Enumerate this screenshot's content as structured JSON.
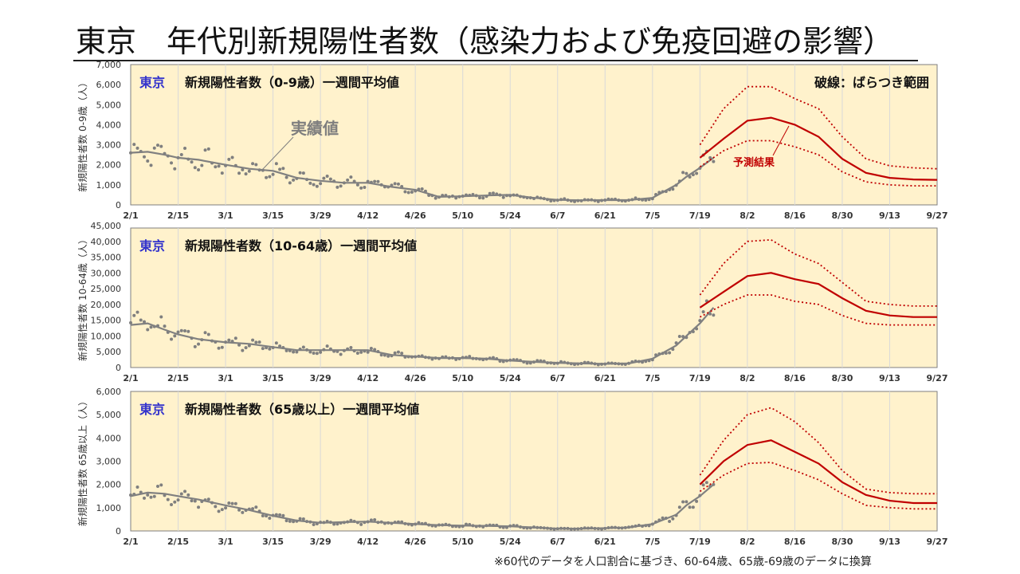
{
  "page": {
    "title": "東京　年代別新規陽性者数（感染力および免疫回避の影響）"
  },
  "footnote": "※60代のデータを人口割合に基づき、60-64歳、65歳-69歳のデータに換算",
  "colors": {
    "panel_bg": "#fff2cc",
    "actual": "#808080",
    "forecast": "#c00000",
    "tokyo_label": "#3333cc"
  },
  "chart_data": [
    {
      "type": "line",
      "region_label": "東京",
      "title": "新規陽性者数（0-9歳）一週間平均値",
      "legend_note": "破線：ばらつき範囲",
      "ylabel": "新規陽性者数 0-9歳（人）",
      "ylim": [
        0,
        7000
      ],
      "yticks": [
        0,
        1000,
        2000,
        3000,
        4000,
        5000,
        6000,
        7000
      ],
      "ytick_labels": [
        "0",
        "1,000",
        "2,000",
        "3,000",
        "4,000",
        "5,000",
        "6,000",
        "7,000"
      ],
      "x_tick_labels": [
        "2/1",
        "2/15",
        "3/1",
        "3/15",
        "3/29",
        "4/12",
        "4/26",
        "5/10",
        "5/24",
        "6/7",
        "6/21",
        "7/5",
        "7/19",
        "8/2",
        "8/16",
        "8/30",
        "9/13",
        "9/27"
      ],
      "x_range_days": [
        0,
        238
      ],
      "annotations": [
        {
          "text": "実績値"
        },
        {
          "text": "予測結果"
        }
      ],
      "series": [
        {
          "name": "実績値",
          "x": [
            0,
            5,
            10,
            14,
            20,
            28,
            35,
            42,
            49,
            56,
            63,
            70,
            77,
            84,
            91,
            98,
            105,
            112,
            119,
            126,
            133,
            140,
            147,
            154,
            161,
            164,
            168,
            172
          ],
          "values": [
            2600,
            2650,
            2500,
            2350,
            2250,
            2000,
            1800,
            1700,
            1350,
            1200,
            1100,
            1100,
            900,
            750,
            400,
            430,
            470,
            500,
            350,
            250,
            230,
            240,
            240,
            350,
            1000,
            1400,
            1850,
            2350
          ]
        },
        {
          "name": "予測結果",
          "x": [
            168,
            175,
            182,
            189,
            196,
            203,
            210,
            217,
            224,
            231,
            238
          ],
          "values": [
            2350,
            3300,
            4200,
            4350,
            4000,
            3400,
            2300,
            1600,
            1350,
            1270,
            1250
          ]
        },
        {
          "name": "上限",
          "x": [
            168,
            175,
            182,
            189,
            196,
            203,
            210,
            217,
            224,
            231,
            238
          ],
          "values": [
            3000,
            4800,
            5900,
            5900,
            5300,
            4800,
            3400,
            2300,
            1950,
            1850,
            1800
          ]
        },
        {
          "name": "下限",
          "x": [
            168,
            175,
            182,
            189,
            196,
            203,
            210,
            217,
            224,
            231,
            238
          ],
          "values": [
            1900,
            2700,
            3200,
            3200,
            2900,
            2500,
            1650,
            1150,
            1000,
            950,
            950
          ]
        }
      ]
    },
    {
      "type": "line",
      "region_label": "東京",
      "title": "新規陽性者数（10-64歳）一週間平均値",
      "ylabel": "新規陽性者数 10-64歳（人）",
      "ylim": [
        0,
        45000
      ],
      "yticks": [
        0,
        5000,
        10000,
        15000,
        20000,
        25000,
        30000,
        35000,
        40000,
        45000
      ],
      "ytick_labels": [
        "0",
        "5,000",
        "10,000",
        "15,000",
        "20,000",
        "25,000",
        "30,000",
        "35,000",
        "40,000",
        "45,000"
      ],
      "x_tick_labels": [
        "2/1",
        "2/15",
        "3/1",
        "3/15",
        "3/29",
        "4/12",
        "4/26",
        "5/10",
        "5/24",
        "6/7",
        "6/21",
        "7/5",
        "7/19",
        "8/2",
        "8/16",
        "8/30",
        "9/13",
        "9/27"
      ],
      "x_range_days": [
        0,
        238
      ],
      "series": [
        {
          "name": "実績値",
          "x": [
            0,
            5,
            10,
            14,
            20,
            28,
            35,
            42,
            49,
            56,
            63,
            70,
            77,
            84,
            91,
            98,
            105,
            112,
            119,
            126,
            133,
            140,
            147,
            154,
            161,
            164,
            168,
            172
          ],
          "values": [
            13500,
            14000,
            12000,
            10500,
            9000,
            8000,
            7500,
            6500,
            5500,
            5500,
            5500,
            5500,
            4000,
            3500,
            3000,
            3000,
            2800,
            2200,
            1800,
            1500,
            1300,
            1200,
            1300,
            2800,
            7000,
            10000,
            14000,
            19000
          ]
        },
        {
          "name": "予測結果",
          "x": [
            168,
            175,
            182,
            189,
            196,
            203,
            210,
            217,
            224,
            231,
            238
          ],
          "values": [
            19000,
            24000,
            29000,
            30000,
            28000,
            26500,
            22000,
            18000,
            16500,
            16000,
            16000
          ]
        },
        {
          "name": "上限",
          "x": [
            168,
            175,
            182,
            189,
            196,
            203,
            210,
            217,
            224,
            231,
            238
          ],
          "values": [
            23000,
            33000,
            40000,
            40500,
            36000,
            33000,
            27000,
            21000,
            20000,
            19500,
            19500
          ]
        },
        {
          "name": "下限",
          "x": [
            168,
            175,
            182,
            189,
            196,
            203,
            210,
            217,
            224,
            231,
            238
          ],
          "values": [
            16000,
            20000,
            23000,
            23000,
            21000,
            20000,
            16500,
            14000,
            13500,
            13500,
            13500
          ]
        }
      ]
    },
    {
      "type": "line",
      "region_label": "東京",
      "title": "新規陽性者数（65歳以上）一週間平均値",
      "ylabel": "新規陽性者数 65歳以上（人）",
      "ylim": [
        0,
        6000
      ],
      "yticks": [
        0,
        1000,
        2000,
        3000,
        4000,
        5000,
        6000
      ],
      "ytick_labels": [
        "0",
        "1,000",
        "2,000",
        "3,000",
        "4,000",
        "5,000",
        "6,000"
      ],
      "x_tick_labels": [
        "2/1",
        "2/15",
        "3/1",
        "3/15",
        "3/29",
        "4/12",
        "4/26",
        "5/10",
        "5/24",
        "6/7",
        "6/21",
        "7/5",
        "7/19",
        "8/2",
        "8/16",
        "8/30",
        "9/13",
        "9/27"
      ],
      "x_range_days": [
        0,
        238
      ],
      "series": [
        {
          "name": "実績値",
          "x": [
            0,
            5,
            10,
            14,
            20,
            28,
            35,
            42,
            49,
            56,
            63,
            70,
            77,
            84,
            91,
            98,
            105,
            112,
            119,
            126,
            133,
            140,
            147,
            154,
            161,
            164,
            168,
            172
          ],
          "values": [
            1500,
            1650,
            1600,
            1500,
            1350,
            1100,
            900,
            650,
            450,
            350,
            380,
            400,
            350,
            300,
            250,
            230,
            220,
            200,
            150,
            100,
            100,
            120,
            150,
            300,
            700,
            1100,
            1500,
            2000
          ]
        },
        {
          "name": "予測結果",
          "x": [
            168,
            175,
            182,
            189,
            196,
            203,
            210,
            217,
            224,
            231,
            238
          ],
          "values": [
            2000,
            3000,
            3700,
            3900,
            3400,
            2900,
            2100,
            1550,
            1300,
            1200,
            1200
          ]
        },
        {
          "name": "上限",
          "x": [
            168,
            175,
            182,
            189,
            196,
            203,
            210,
            217,
            224,
            231,
            238
          ],
          "values": [
            2400,
            3900,
            5000,
            5300,
            4700,
            3800,
            2600,
            1800,
            1650,
            1600,
            1600
          ]
        },
        {
          "name": "下限",
          "x": [
            168,
            175,
            182,
            189,
            196,
            203,
            210,
            217,
            224,
            231,
            238
          ],
          "values": [
            1700,
            2400,
            2900,
            2950,
            2600,
            2200,
            1600,
            1100,
            1000,
            950,
            950
          ]
        }
      ]
    }
  ]
}
